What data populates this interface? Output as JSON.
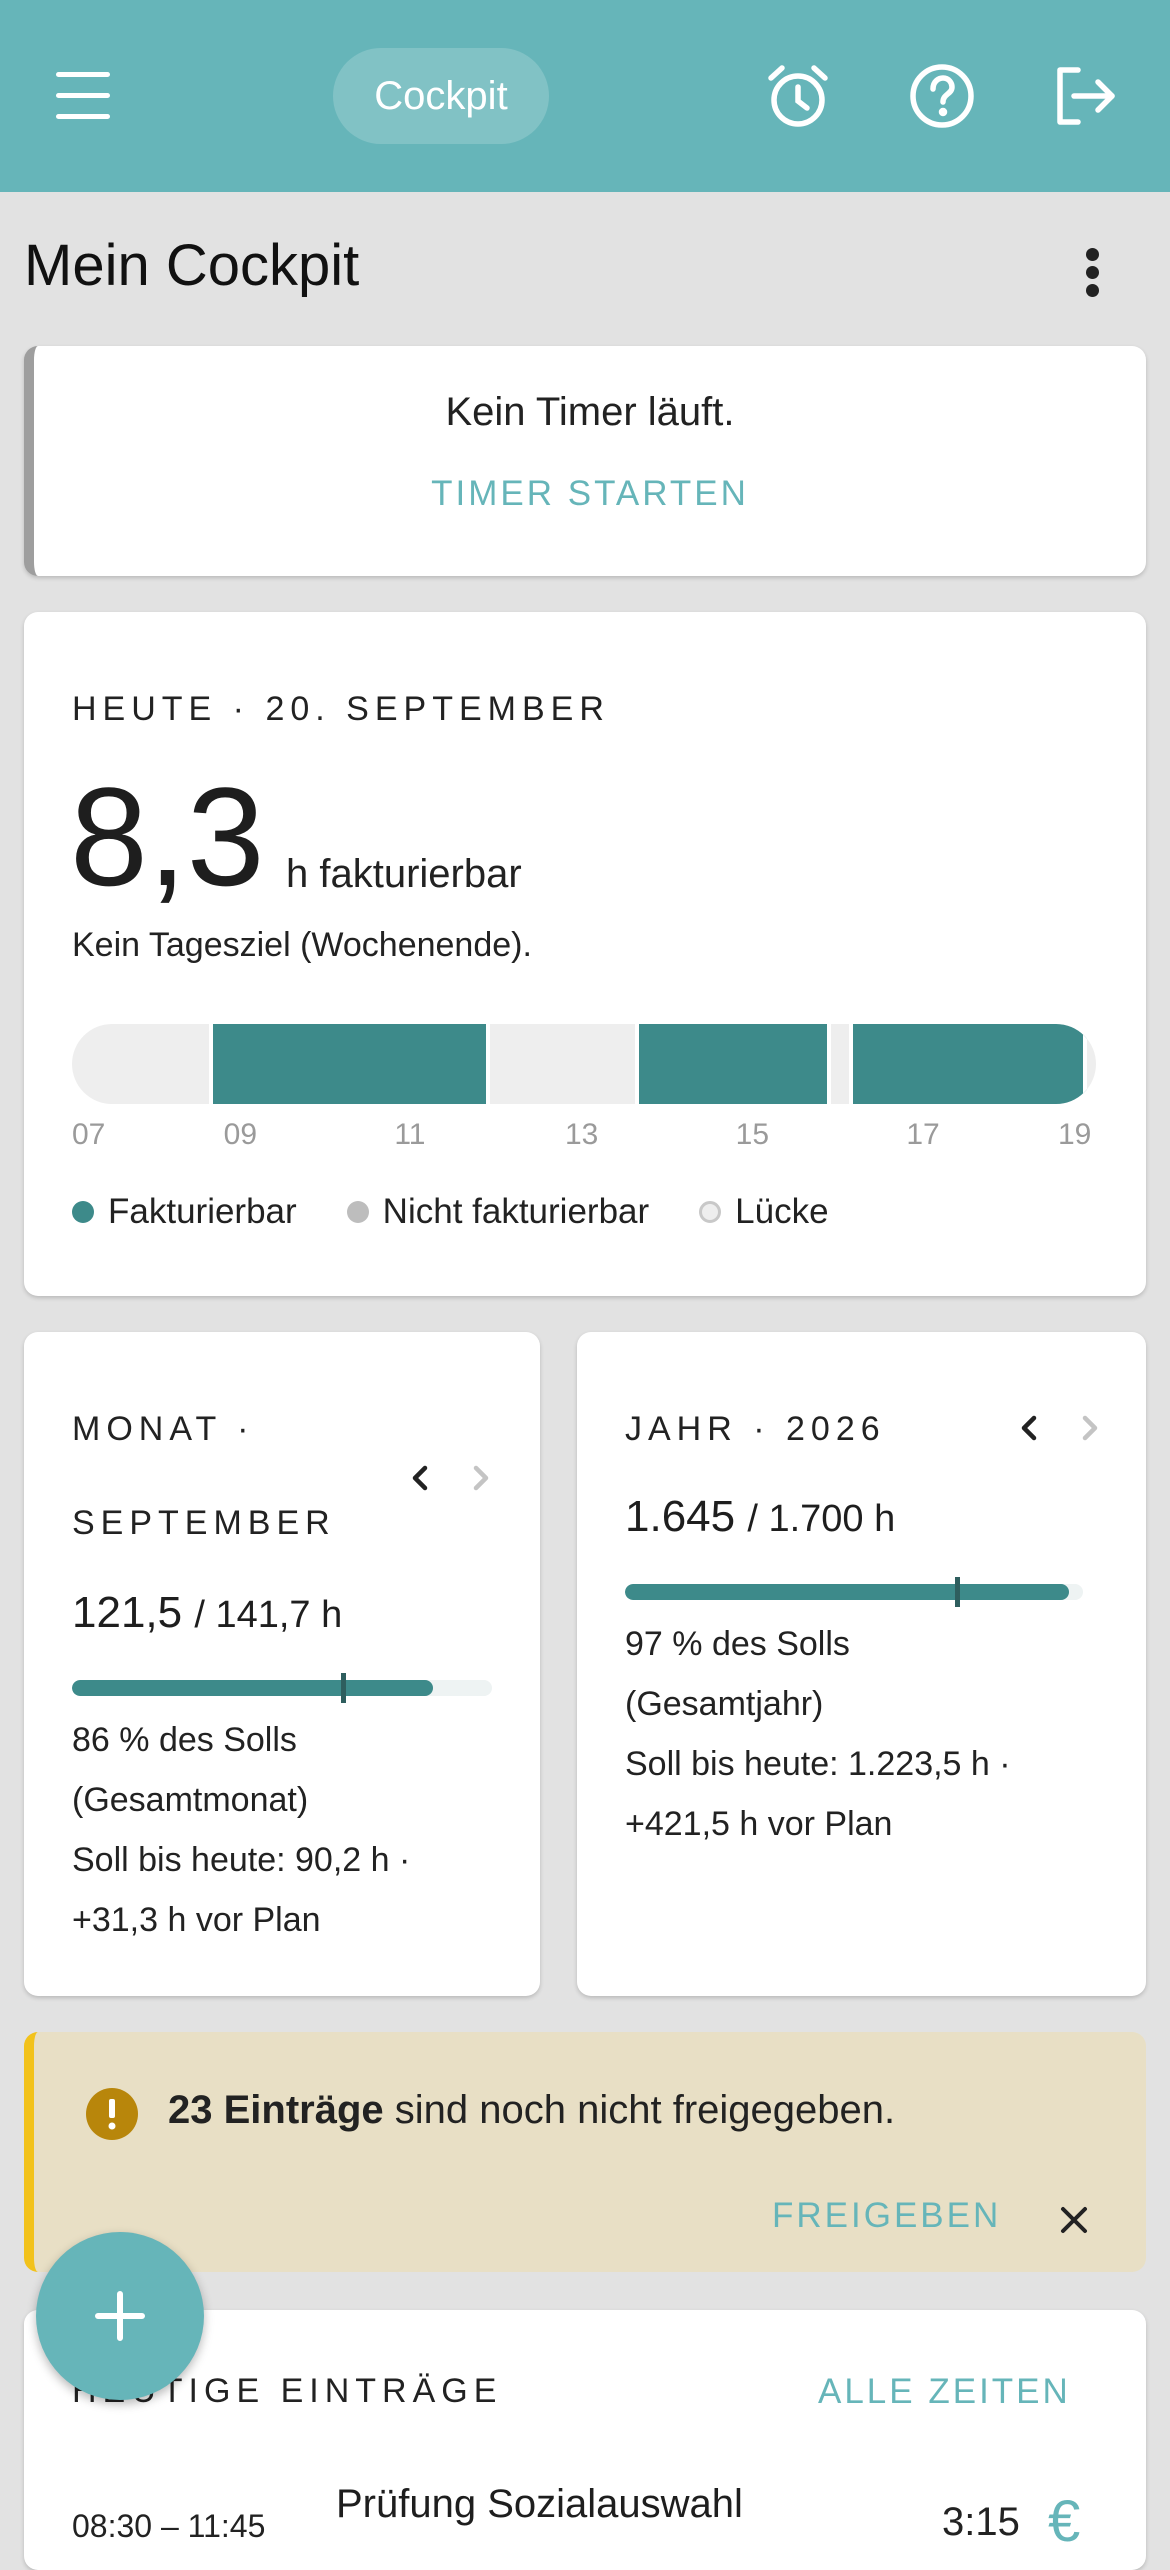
{
  "appbar": {
    "nav_label": "Cockpit",
    "icons": [
      "menu-icon",
      "alarm-clock-icon",
      "help-circle-icon",
      "logout-icon"
    ]
  },
  "page": {
    "title": "Mein Cockpit"
  },
  "timer": {
    "status": "Kein Timer läuft.",
    "start_label": "TIMER STARTEN"
  },
  "today": {
    "heading": "HEUTE · 20. SEPTEMBER",
    "hours": "8,3",
    "unit_label": "h fakturierbar",
    "goal_text": "Kein Tagesziel (Wochenende).",
    "timeline_start_hour": 7,
    "timeline_end_hour": 19,
    "blocks": [
      {
        "start": 8.6,
        "end": 11.9,
        "type": "billable"
      },
      {
        "start": 13.6,
        "end": 15.9,
        "type": "billable"
      },
      {
        "start": 16.1,
        "end": 18.9,
        "type": "billable"
      }
    ],
    "ticks": [
      "07",
      "09",
      "11",
      "13",
      "15",
      "17",
      "19"
    ],
    "legend": [
      {
        "label": "Fakturierbar",
        "color": "#3d8a8a"
      },
      {
        "label": "Nicht fakturierbar",
        "color": "#bdbdbd"
      },
      {
        "label": "Lücke",
        "color": "#eeeeee"
      }
    ]
  },
  "month": {
    "heading_line1": "MONAT ·",
    "heading_line2": "SEPTEMBER",
    "hours_actual": "121,5",
    "hours_target": "/ 141,7 h",
    "progress": 0.86,
    "marker": 0.64,
    "percent_text": "86 % des Solls",
    "scope_text": "(Gesamtmonat)",
    "todate_text": "Soll bis heute: 90,2 h ·",
    "ahead_text": "+31,3 h vor Plan"
  },
  "year": {
    "heading": "JAHR · 2026",
    "hours_actual": "1.645",
    "hours_target": "/ 1.700 h",
    "progress": 0.97,
    "marker": 0.72,
    "percent_text": "97 % des Solls",
    "scope_text": "(Gesamtjahr)",
    "todate_text": "Soll bis heute: 1.223,5 h ·",
    "ahead_text": "+421,5 h vor Plan"
  },
  "alert": {
    "count_text": "23 Einträge",
    "message": " sind noch nicht freigegeben.",
    "action_label": "FREIGEBEN"
  },
  "entries": {
    "heading": "HEUTIGE EINTRÄGE",
    "all_label": "ALLE ZEITEN",
    "items": [
      {
        "time": "08:30 – 11:45",
        "title": "Prüfung Sozialauswahl",
        "duration": "3:15",
        "billing_symbol": "€"
      }
    ]
  },
  "colors": {
    "primary": "#66b5b9",
    "billable": "#3d8a8a",
    "warning": "#f2c21b",
    "alert_bg": "#e8dfc5"
  }
}
